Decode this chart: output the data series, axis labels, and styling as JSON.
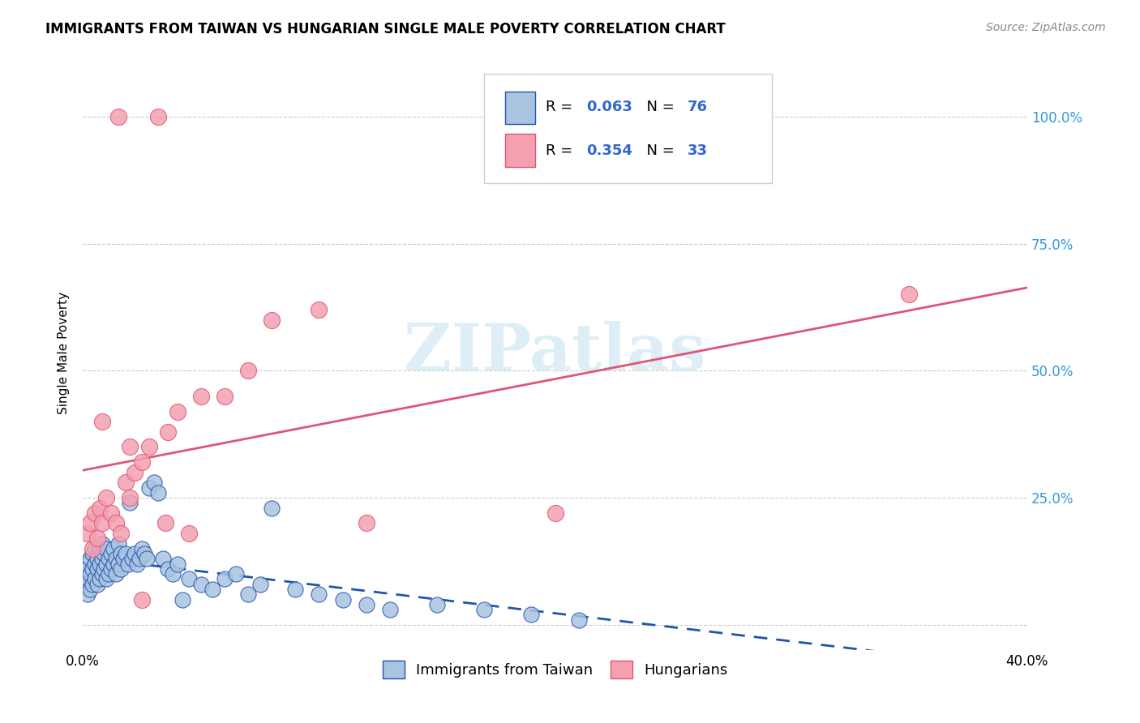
{
  "title": "IMMIGRANTS FROM TAIWAN VS HUNGARIAN SINGLE MALE POVERTY CORRELATION CHART",
  "source": "Source: ZipAtlas.com",
  "ylabel": "Single Male Poverty",
  "x_lim": [
    0.0,
    0.4
  ],
  "y_lim": [
    -0.05,
    1.12
  ],
  "taiwan_R": 0.063,
  "taiwan_N": 76,
  "hungarian_R": 0.354,
  "hungarian_N": 33,
  "taiwan_color": "#a8c4e0",
  "hungarian_color": "#f4a0b0",
  "taiwan_line_color": "#2255aa",
  "hungarian_line_color": "#dd5577",
  "watermark_color": "#d0e8f4",
  "legend_labels": [
    "Immigrants from Taiwan",
    "Hungarians"
  ],
  "taiwan_scatter_x": [
    0.001,
    0.001,
    0.002,
    0.002,
    0.002,
    0.003,
    0.003,
    0.003,
    0.004,
    0.004,
    0.004,
    0.005,
    0.005,
    0.005,
    0.006,
    0.006,
    0.006,
    0.007,
    0.007,
    0.007,
    0.008,
    0.008,
    0.008,
    0.009,
    0.009,
    0.01,
    0.01,
    0.01,
    0.011,
    0.011,
    0.012,
    0.012,
    0.013,
    0.013,
    0.014,
    0.014,
    0.015,
    0.015,
    0.016,
    0.016,
    0.017,
    0.018,
    0.019,
    0.02,
    0.021,
    0.022,
    0.023,
    0.024,
    0.025,
    0.026,
    0.027,
    0.028,
    0.03,
    0.032,
    0.034,
    0.036,
    0.038,
    0.04,
    0.042,
    0.045,
    0.05,
    0.055,
    0.06,
    0.065,
    0.07,
    0.075,
    0.08,
    0.09,
    0.1,
    0.11,
    0.12,
    0.13,
    0.15,
    0.17,
    0.19,
    0.21
  ],
  "taiwan_scatter_y": [
    0.08,
    0.1,
    0.06,
    0.09,
    0.11,
    0.07,
    0.1,
    0.13,
    0.08,
    0.11,
    0.14,
    0.09,
    0.12,
    0.15,
    0.08,
    0.11,
    0.13,
    0.09,
    0.12,
    0.15,
    0.1,
    0.13,
    0.16,
    0.11,
    0.14,
    0.09,
    0.12,
    0.15,
    0.1,
    0.13,
    0.11,
    0.14,
    0.12,
    0.15,
    0.1,
    0.13,
    0.12,
    0.16,
    0.11,
    0.14,
    0.13,
    0.14,
    0.12,
    0.24,
    0.13,
    0.14,
    0.12,
    0.13,
    0.15,
    0.14,
    0.13,
    0.27,
    0.28,
    0.26,
    0.13,
    0.11,
    0.1,
    0.12,
    0.05,
    0.09,
    0.08,
    0.07,
    0.09,
    0.1,
    0.06,
    0.08,
    0.23,
    0.07,
    0.06,
    0.05,
    0.04,
    0.03,
    0.04,
    0.03,
    0.02,
    0.01
  ],
  "hungarian_scatter_x": [
    0.002,
    0.003,
    0.004,
    0.005,
    0.006,
    0.007,
    0.008,
    0.01,
    0.012,
    0.014,
    0.016,
    0.018,
    0.02,
    0.022,
    0.025,
    0.028,
    0.015,
    0.032,
    0.036,
    0.04,
    0.05,
    0.06,
    0.07,
    0.08,
    0.1,
    0.12,
    0.2,
    0.35,
    0.008,
    0.02,
    0.025,
    0.035,
    0.045
  ],
  "hungarian_scatter_y": [
    0.18,
    0.2,
    0.15,
    0.22,
    0.17,
    0.23,
    0.2,
    0.25,
    0.22,
    0.2,
    0.18,
    0.28,
    0.25,
    0.3,
    0.32,
    0.35,
    1.0,
    1.0,
    0.38,
    0.42,
    0.45,
    0.45,
    0.5,
    0.6,
    0.62,
    0.2,
    0.22,
    0.65,
    0.4,
    0.35,
    0.05,
    0.2,
    0.18
  ]
}
